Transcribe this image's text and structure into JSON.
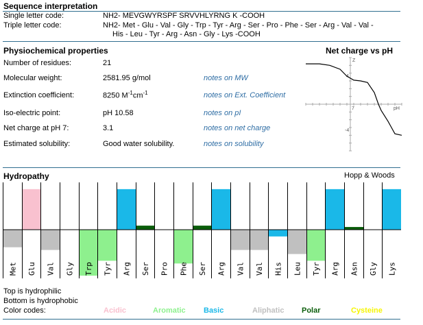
{
  "sequence": {
    "title": "Sequence interpretation",
    "single_label": "Single letter code:",
    "single_value": "NH2- MEVGWYRSPF SRVVHLYRNG K -COOH",
    "triple_label": "Triple letter code:",
    "triple_line1": "NH2- Met - Glu - Val - Gly - Trp - Tyr - Arg - Ser - Pro - Phe - Ser - Arg - Val - Val -",
    "triple_line2": "His - Leu - Tyr - Arg - Asn - Gly - Lys -COOH"
  },
  "properties": {
    "title": "Physiochemical properties",
    "rows": [
      {
        "label": "Number of residues:",
        "value": "21",
        "note": ""
      },
      {
        "label": "Molecular weight:",
        "value": "2581.95 g/mol",
        "note": "notes on MW"
      },
      {
        "label": "Extinction coefficient:",
        "value": "8250 M",
        "sup1": "-1",
        "mid": "cm",
        "sup2": "-1",
        "note": "notes on Ext. Coefficient"
      },
      {
        "label": "Iso-electric point:",
        "value": "pH 10.58",
        "note": "notes on pI"
      },
      {
        "label": "Net charge at pH 7:",
        "value": "3.1",
        "note": "notes on net charge"
      },
      {
        "label": "Estimated solubility:",
        "value": "Good water solubility.",
        "note": "notes on solubility"
      }
    ]
  },
  "net_charge": {
    "title": "Net charge vs pH",
    "z_label": "Z",
    "ph_label": "pH",
    "tick_y_pos": "4",
    "tick_y_neg": "-4",
    "tick_x": "7"
  },
  "hydropathy": {
    "title": "Hydropathy",
    "scale": "Hopp & Woods",
    "top_note": "Top is hydrophilic",
    "bottom_note": "Bottom is hydrophobic",
    "color_codes_label": "Color codes:",
    "legend": [
      {
        "name": "Acidic",
        "color": "#f9c1cf"
      },
      {
        "name": "Aromatic",
        "color": "#8ef08e"
      },
      {
        "name": "Basic",
        "color": "#1ab8e8"
      },
      {
        "name": "Aliphatic",
        "color": "#c0c0c0"
      },
      {
        "name": "Polar",
        "color": "#0b5e0b"
      },
      {
        "name": "Cysteine",
        "color": "#f5f500"
      }
    ]
  },
  "chart_data": {
    "type": "bar",
    "categories": [
      "Met",
      "Glu",
      "Val",
      "Gly",
      "Trp",
      "Tyr",
      "Arg",
      "Ser",
      "Pro",
      "Phe",
      "Ser",
      "Arg",
      "Val",
      "Val",
      "His",
      "Leu",
      "Tyr",
      "Arg",
      "Asn",
      "Gly",
      "Lys"
    ],
    "values": [
      -1.3,
      3.0,
      -1.5,
      0.0,
      -3.4,
      -2.3,
      3.0,
      0.3,
      0.0,
      -2.5,
      0.3,
      3.0,
      -1.5,
      -1.5,
      -0.5,
      -1.8,
      -2.3,
      3.0,
      0.2,
      0.0,
      3.0
    ],
    "classes": [
      "aliphatic",
      "acidic",
      "aliphatic",
      "none",
      "aromatic",
      "aromatic",
      "basic",
      "polar",
      "none",
      "aromatic",
      "polar",
      "basic",
      "aliphatic",
      "aliphatic",
      "basic",
      "aliphatic",
      "aromatic",
      "basic",
      "polar",
      "none",
      "basic"
    ],
    "ylim": [
      -3.5,
      3.5
    ]
  },
  "net_charge_chart": {
    "type": "line",
    "x": [
      0,
      2,
      3.5,
      5,
      6,
      7,
      8,
      9,
      10,
      10.6,
      11,
      12,
      12.5,
      13,
      14
    ],
    "y": [
      5.2,
      5.2,
      5.0,
      4.5,
      3.6,
      3.1,
      3.0,
      2.8,
      1.5,
      0.0,
      -0.8,
      -2.2,
      -3.0,
      -3.8,
      -4.0
    ],
    "xlim": [
      0,
      14
    ],
    "ylim": [
      -6,
      6
    ]
  }
}
